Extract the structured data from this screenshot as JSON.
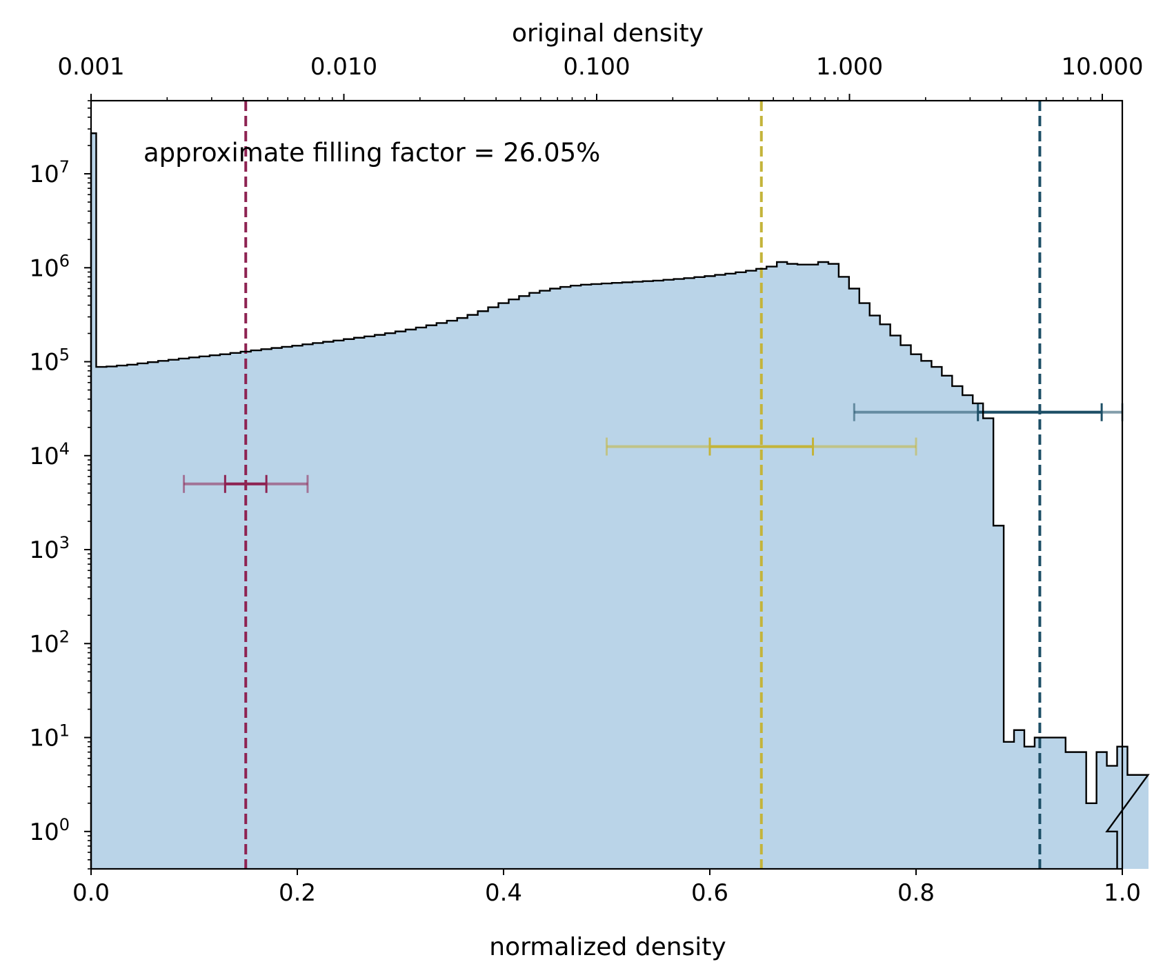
{
  "chart_data": {
    "type": "histogram",
    "xlabel": "normalized density",
    "x2label": "original density",
    "ylabel": "",
    "xlim": [
      0.0,
      1.0
    ],
    "ylim": [
      0.4,
      60000000
    ],
    "y_scale": "log",
    "x_ticks": [
      "0.0",
      "0.2",
      "0.4",
      "0.6",
      "0.8",
      "1.0"
    ],
    "x2_ticks": [
      {
        "value": 0.001,
        "label": "0.001"
      },
      {
        "value": 0.01,
        "label": "0.010"
      },
      {
        "value": 0.1,
        "label": "0.100"
      },
      {
        "value": 1.0,
        "label": "1.000"
      },
      {
        "value": 10.0,
        "label": "10.000"
      }
    ],
    "x2_range": [
      0.001,
      12.0
    ],
    "y_ticks": [
      {
        "base": "10",
        "exp": "0",
        "value": 1
      },
      {
        "base": "10",
        "exp": "1",
        "value": 10
      },
      {
        "base": "10",
        "exp": "2",
        "value": 100
      },
      {
        "base": "10",
        "exp": "3",
        "value": 1000
      },
      {
        "base": "10",
        "exp": "4",
        "value": 10000
      },
      {
        "base": "10",
        "exp": "5",
        "value": 100000
      },
      {
        "base": "10",
        "exp": "6",
        "value": 1000000
      },
      {
        "base": "10",
        "exp": "7",
        "value": 10000000
      }
    ],
    "annotation": "approximate filling factor = 26.05%",
    "fill_color": "#bad4e8",
    "histogram": {
      "bin_width": 0.01,
      "spike": {
        "x0": 0.0,
        "x1": 0.005,
        "value": 27000000
      },
      "start": 0.005,
      "counts": [
        88000,
        89000,
        91000,
        93000,
        96000,
        99000,
        102000,
        105000,
        108000,
        111000,
        114000,
        117000,
        120000,
        124000,
        128000,
        132000,
        136000,
        140000,
        144000,
        148000,
        153000,
        158000,
        163000,
        168000,
        174000,
        180000,
        186000,
        193000,
        201000,
        210000,
        220000,
        231000,
        244000,
        258000,
        273000,
        292000,
        315000,
        345000,
        380000,
        420000,
        460000,
        500000,
        540000,
        570000,
        600000,
        625000,
        645000,
        660000,
        670000,
        680000,
        690000,
        700000,
        710000,
        720000,
        730000,
        745000,
        760000,
        775000,
        795000,
        815000,
        840000,
        865000,
        895000,
        930000,
        975000,
        1030000,
        1150000,
        1100000,
        1080000,
        1080000,
        1150000,
        1100000,
        800000,
        600000,
        420000,
        310000,
        250000,
        190000,
        150000,
        120000,
        102000,
        88000,
        71000,
        55000,
        44000,
        36000,
        25000,
        1800,
        9,
        12,
        8,
        10,
        10,
        10,
        7,
        7,
        2,
        7,
        5,
        8,
        4,
        4
      ],
      "tail": [
        {
          "x0": 0.985,
          "x1": 0.995,
          "value": 1
        }
      ]
    },
    "vlines": [
      {
        "x": 0.15,
        "color": "#8e2352"
      },
      {
        "x": 0.65,
        "color": "#c4b43a"
      },
      {
        "x": 0.92,
        "color": "#1d4f66"
      }
    ],
    "errorbars": [
      {
        "color": "#8e2352",
        "y": 5000,
        "outer": [
          0.09,
          0.21
        ],
        "inner": [
          0.13,
          0.17
        ]
      },
      {
        "color": "#c4b43a",
        "y": 12500,
        "outer": [
          0.5,
          0.8
        ],
        "inner": [
          0.6,
          0.7
        ]
      },
      {
        "color": "#1d4f66",
        "y": 29000,
        "outer": [
          0.74,
          1.0
        ],
        "inner": [
          0.86,
          0.98
        ]
      }
    ]
  }
}
